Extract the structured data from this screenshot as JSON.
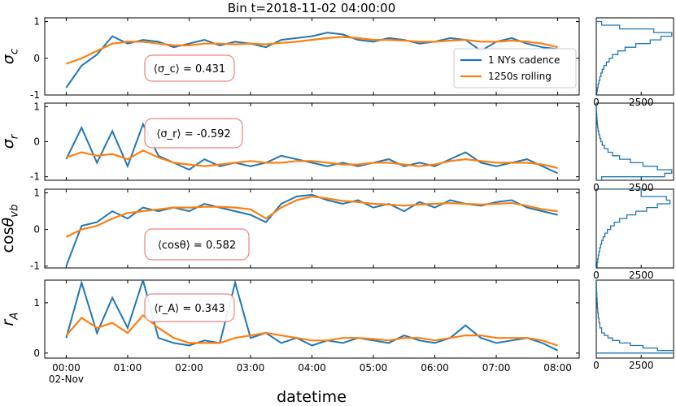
{
  "chart_data": {
    "type": "line",
    "title": "Bin t=2018-11-02 04:00:00",
    "xlabel": "datetime",
    "x_ticks": [
      "00:00",
      "01:00",
      "02:00",
      "03:00",
      "04:00",
      "05:00",
      "06:00",
      "07:00",
      "08:00"
    ],
    "x_date_label": "02-Nov",
    "x_unit": "hours",
    "xlim": [
      -0.35,
      8.35
    ],
    "legend": {
      "placement": "top-right",
      "entries": [
        "1 NYs cadence",
        "1250s rolling"
      ]
    },
    "colors": {
      "raw": "#1f77b4",
      "rolling": "#ff7f0e",
      "annotation_box": "#f08080"
    },
    "panels": [
      {
        "ylabel": "σ_c",
        "ylim": [
          -1,
          1.1
        ],
        "yticks": [
          "-1",
          "0",
          "1"
        ],
        "annotation": "⟨σ_c⟩ = 0.431",
        "series": [
          {
            "name": "1 NYs cadence",
            "x": [
              0,
              0.25,
              0.5,
              0.75,
              1,
              1.25,
              1.5,
              1.75,
              2,
              2.25,
              2.5,
              2.75,
              3,
              3.25,
              3.5,
              3.75,
              4,
              4.25,
              4.5,
              4.75,
              5,
              5.25,
              5.5,
              5.75,
              6,
              6.25,
              6.5,
              6.75,
              7,
              7.25,
              7.5,
              7.75,
              8
            ],
            "values": [
              -0.8,
              -0.2,
              0.1,
              0.6,
              0.4,
              0.5,
              0.45,
              0.3,
              0.4,
              0.5,
              0.35,
              0.45,
              0.4,
              0.3,
              0.5,
              0.55,
              0.6,
              0.7,
              0.65,
              0.5,
              0.45,
              0.55,
              0.5,
              0.4,
              0.45,
              0.55,
              0.5,
              0.2,
              0.45,
              0.55,
              0.4,
              0.3,
              0.25
            ]
          },
          {
            "name": "1250s rolling",
            "x": [
              0,
              0.25,
              0.5,
              0.75,
              1,
              1.25,
              1.5,
              1.75,
              2,
              2.25,
              2.5,
              2.75,
              3,
              3.25,
              3.5,
              3.75,
              4,
              4.25,
              4.5,
              4.75,
              5,
              5.25,
              5.5,
              5.75,
              6,
              6.25,
              6.5,
              6.75,
              7,
              7.25,
              7.5,
              7.75,
              8
            ],
            "values": [
              -0.15,
              0,
              0.2,
              0.4,
              0.45,
              0.45,
              0.4,
              0.35,
              0.35,
              0.4,
              0.4,
              0.38,
              0.4,
              0.38,
              0.42,
              0.45,
              0.5,
              0.55,
              0.58,
              0.55,
              0.5,
              0.5,
              0.48,
              0.45,
              0.45,
              0.48,
              0.5,
              0.45,
              0.45,
              0.48,
              0.45,
              0.4,
              0.3
            ]
          }
        ],
        "histogram": {
          "xticks": [
            "0",
            "2500"
          ],
          "xlim": [
            0,
            4300
          ],
          "bins": [
            -1,
            -0.9,
            -0.8,
            -0.7,
            -0.6,
            -0.5,
            -0.4,
            -0.3,
            -0.2,
            -0.1,
            0,
            0.1,
            0.2,
            0.3,
            0.4,
            0.5,
            0.6,
            0.7,
            0.8,
            0.9,
            1
          ],
          "counts": [
            30,
            60,
            100,
            150,
            200,
            260,
            330,
            420,
            560,
            720,
            900,
            1200,
            1600,
            2200,
            3000,
            3600,
            4200,
            3200,
            1300,
            300
          ]
        }
      },
      {
        "ylabel": "σ_r",
        "ylim": [
          -1.1,
          1.1
        ],
        "yticks": [
          "-1",
          "0",
          "1"
        ],
        "annotation": "⟨σ_r⟩ = -0.592",
        "series": [
          {
            "name": "1 NYs cadence",
            "x": [
              0,
              0.25,
              0.5,
              0.75,
              1,
              1.25,
              1.5,
              1.75,
              2,
              2.25,
              2.5,
              2.75,
              3,
              3.25,
              3.5,
              3.75,
              4,
              4.25,
              4.5,
              4.75,
              5,
              5.25,
              5.5,
              5.75,
              6,
              6.25,
              6.5,
              6.75,
              7,
              7.25,
              7.5,
              7.75,
              8
            ],
            "values": [
              -0.5,
              0.4,
              -0.6,
              0.3,
              -0.7,
              0.5,
              -0.4,
              -0.6,
              -0.8,
              -0.5,
              -0.7,
              -0.6,
              -0.7,
              -0.6,
              -0.4,
              -0.5,
              -0.6,
              -0.7,
              -0.6,
              -0.7,
              -0.6,
              -0.5,
              -0.7,
              -0.6,
              -0.7,
              -0.5,
              -0.3,
              -0.6,
              -0.7,
              -0.6,
              -0.5,
              -0.7,
              -0.9
            ]
          },
          {
            "name": "1250s rolling",
            "x": [
              0,
              0.25,
              0.5,
              0.75,
              1,
              1.25,
              1.5,
              1.75,
              2,
              2.25,
              2.5,
              2.75,
              3,
              3.25,
              3.5,
              3.75,
              4,
              4.25,
              4.5,
              4.75,
              5,
              5.25,
              5.5,
              5.75,
              6,
              6.25,
              6.5,
              6.75,
              7,
              7.25,
              7.5,
              7.75,
              8
            ],
            "values": [
              -0.45,
              -0.3,
              -0.4,
              -0.35,
              -0.5,
              -0.25,
              -0.45,
              -0.6,
              -0.65,
              -0.7,
              -0.65,
              -0.6,
              -0.55,
              -0.6,
              -0.6,
              -0.55,
              -0.55,
              -0.6,
              -0.65,
              -0.65,
              -0.6,
              -0.6,
              -0.65,
              -0.7,
              -0.65,
              -0.55,
              -0.5,
              -0.55,
              -0.6,
              -0.6,
              -0.6,
              -0.65,
              -0.75
            ]
          }
        ],
        "histogram": {
          "xticks": [
            "0",
            "2500"
          ],
          "xlim": [
            0,
            4300
          ],
          "bins": [
            -1.1,
            -1,
            -0.9,
            -0.8,
            -0.7,
            -0.6,
            -0.5,
            -0.4,
            -0.3,
            -0.2,
            -0.1,
            0,
            0.1,
            0.2,
            0.3,
            0.4,
            0.5,
            0.6,
            0.7,
            0.8,
            0.9,
            1.1
          ],
          "counts": [
            300,
            3800,
            4200,
            3400,
            2600,
            1900,
            1300,
            900,
            650,
            450,
            330,
            250,
            190,
            140,
            100,
            75,
            55,
            40,
            30,
            20,
            10
          ]
        }
      },
      {
        "ylabel": "cosθ_vb",
        "ylim": [
          -1.05,
          1.1
        ],
        "yticks": [
          "-1",
          "0",
          "1"
        ],
        "annotation": "⟨cosθ⟩ = 0.582",
        "series": [
          {
            "name": "1 NYs cadence",
            "x": [
              0,
              0.25,
              0.5,
              0.75,
              1,
              1.25,
              1.5,
              1.75,
              2,
              2.25,
              2.5,
              2.75,
              3,
              3.25,
              3.5,
              3.75,
              4,
              4.25,
              4.5,
              4.75,
              5,
              5.25,
              5.5,
              5.75,
              6,
              6.25,
              6.5,
              6.75,
              7,
              7.25,
              7.5,
              7.75,
              8
            ],
            "values": [
              -1,
              0.1,
              0.2,
              0.5,
              0.3,
              0.6,
              0.5,
              0.6,
              0.5,
              0.7,
              0.6,
              0.5,
              0.4,
              0.2,
              0.7,
              0.9,
              0.95,
              0.8,
              0.7,
              0.8,
              0.6,
              0.7,
              0.5,
              0.75,
              0.6,
              0.8,
              0.7,
              0.65,
              0.75,
              0.8,
              0.6,
              0.5,
              0.4
            ]
          },
          {
            "name": "1250s rolling",
            "x": [
              0,
              0.25,
              0.5,
              0.75,
              1,
              1.25,
              1.5,
              1.75,
              2,
              2.25,
              2.5,
              2.75,
              3,
              3.25,
              3.5,
              3.75,
              4,
              4.25,
              4.5,
              4.75,
              5,
              5.25,
              5.5,
              5.75,
              6,
              6.25,
              6.5,
              6.75,
              7,
              7.25,
              7.5,
              7.75,
              8
            ],
            "values": [
              -0.2,
              0,
              0.1,
              0.3,
              0.45,
              0.5,
              0.55,
              0.6,
              0.6,
              0.62,
              0.62,
              0.6,
              0.55,
              0.3,
              0.6,
              0.8,
              0.9,
              0.85,
              0.78,
              0.75,
              0.7,
              0.68,
              0.65,
              0.68,
              0.7,
              0.72,
              0.7,
              0.68,
              0.7,
              0.72,
              0.65,
              0.55,
              0.5
            ]
          }
        ],
        "histogram": {
          "xticks": [
            "0",
            "2500"
          ],
          "xlim": [
            0,
            4300
          ],
          "bins": [
            -1.05,
            -0.9,
            -0.8,
            -0.7,
            -0.6,
            -0.5,
            -0.4,
            -0.3,
            -0.2,
            -0.1,
            0,
            0.1,
            0.2,
            0.3,
            0.4,
            0.5,
            0.6,
            0.7,
            0.8,
            0.9,
            1.1
          ],
          "counts": [
            50,
            80,
            110,
            150,
            190,
            240,
            300,
            380,
            480,
            620,
            800,
            1000,
            1300,
            1700,
            2200,
            2800,
            3400,
            4100,
            3900,
            2500
          ]
        }
      },
      {
        "ylabel": "r_A",
        "ylim": [
          -0.1,
          1.45
        ],
        "yticks": [
          "0",
          "1"
        ],
        "annotation": "⟨r_A⟩ = 0.343",
        "series": [
          {
            "name": "1 NYs cadence",
            "x": [
              0,
              0.25,
              0.5,
              0.75,
              1,
              1.25,
              1.5,
              1.75,
              2,
              2.25,
              2.5,
              2.75,
              3,
              3.25,
              3.5,
              3.75,
              4,
              4.25,
              4.5,
              4.75,
              5,
              5.25,
              5.5,
              5.75,
              6,
              6.25,
              6.5,
              6.75,
              7,
              7.25,
              7.5,
              7.75,
              8
            ],
            "values": [
              0.3,
              1.4,
              0.4,
              1.1,
              0.5,
              1.45,
              0.3,
              0.2,
              0.15,
              0.25,
              0.2,
              1.4,
              0.3,
              0.4,
              0.2,
              0.3,
              0.15,
              0.25,
              0.2,
              0.3,
              0.25,
              0.2,
              0.35,
              0.25,
              0.2,
              0.3,
              0.55,
              0.3,
              0.2,
              0.25,
              0.3,
              0.2,
              0.05
            ]
          },
          {
            "name": "1250s rolling",
            "x": [
              0,
              0.25,
              0.5,
              0.75,
              1,
              1.25,
              1.5,
              1.75,
              2,
              2.25,
              2.5,
              2.75,
              3,
              3.25,
              3.5,
              3.75,
              4,
              4.25,
              4.5,
              4.75,
              5,
              5.25,
              5.5,
              5.75,
              6,
              6.25,
              6.5,
              6.75,
              7,
              7.25,
              7.5,
              7.75,
              8
            ],
            "values": [
              0.35,
              0.7,
              0.5,
              0.6,
              0.4,
              0.75,
              0.5,
              0.3,
              0.2,
              0.2,
              0.2,
              0.3,
              0.35,
              0.4,
              0.35,
              0.3,
              0.25,
              0.25,
              0.3,
              0.3,
              0.28,
              0.25,
              0.3,
              0.3,
              0.25,
              0.3,
              0.35,
              0.35,
              0.3,
              0.3,
              0.3,
              0.25,
              0.15
            ]
          }
        ],
        "histogram": {
          "xticks": [
            "0",
            "2500"
          ],
          "xlim": [
            0,
            4300
          ],
          "bins": [
            0,
            0.05,
            0.1,
            0.15,
            0.2,
            0.25,
            0.3,
            0.35,
            0.4,
            0.5,
            0.6,
            0.7,
            0.8,
            0.9,
            1,
            1.1,
            1.2,
            1.3,
            1.4,
            1.5
          ],
          "counts": [
            4300,
            3400,
            2600,
            1900,
            1300,
            900,
            650,
            450,
            300,
            200,
            150,
            110,
            80,
            60,
            45,
            30,
            20,
            12,
            6
          ]
        }
      }
    ]
  }
}
